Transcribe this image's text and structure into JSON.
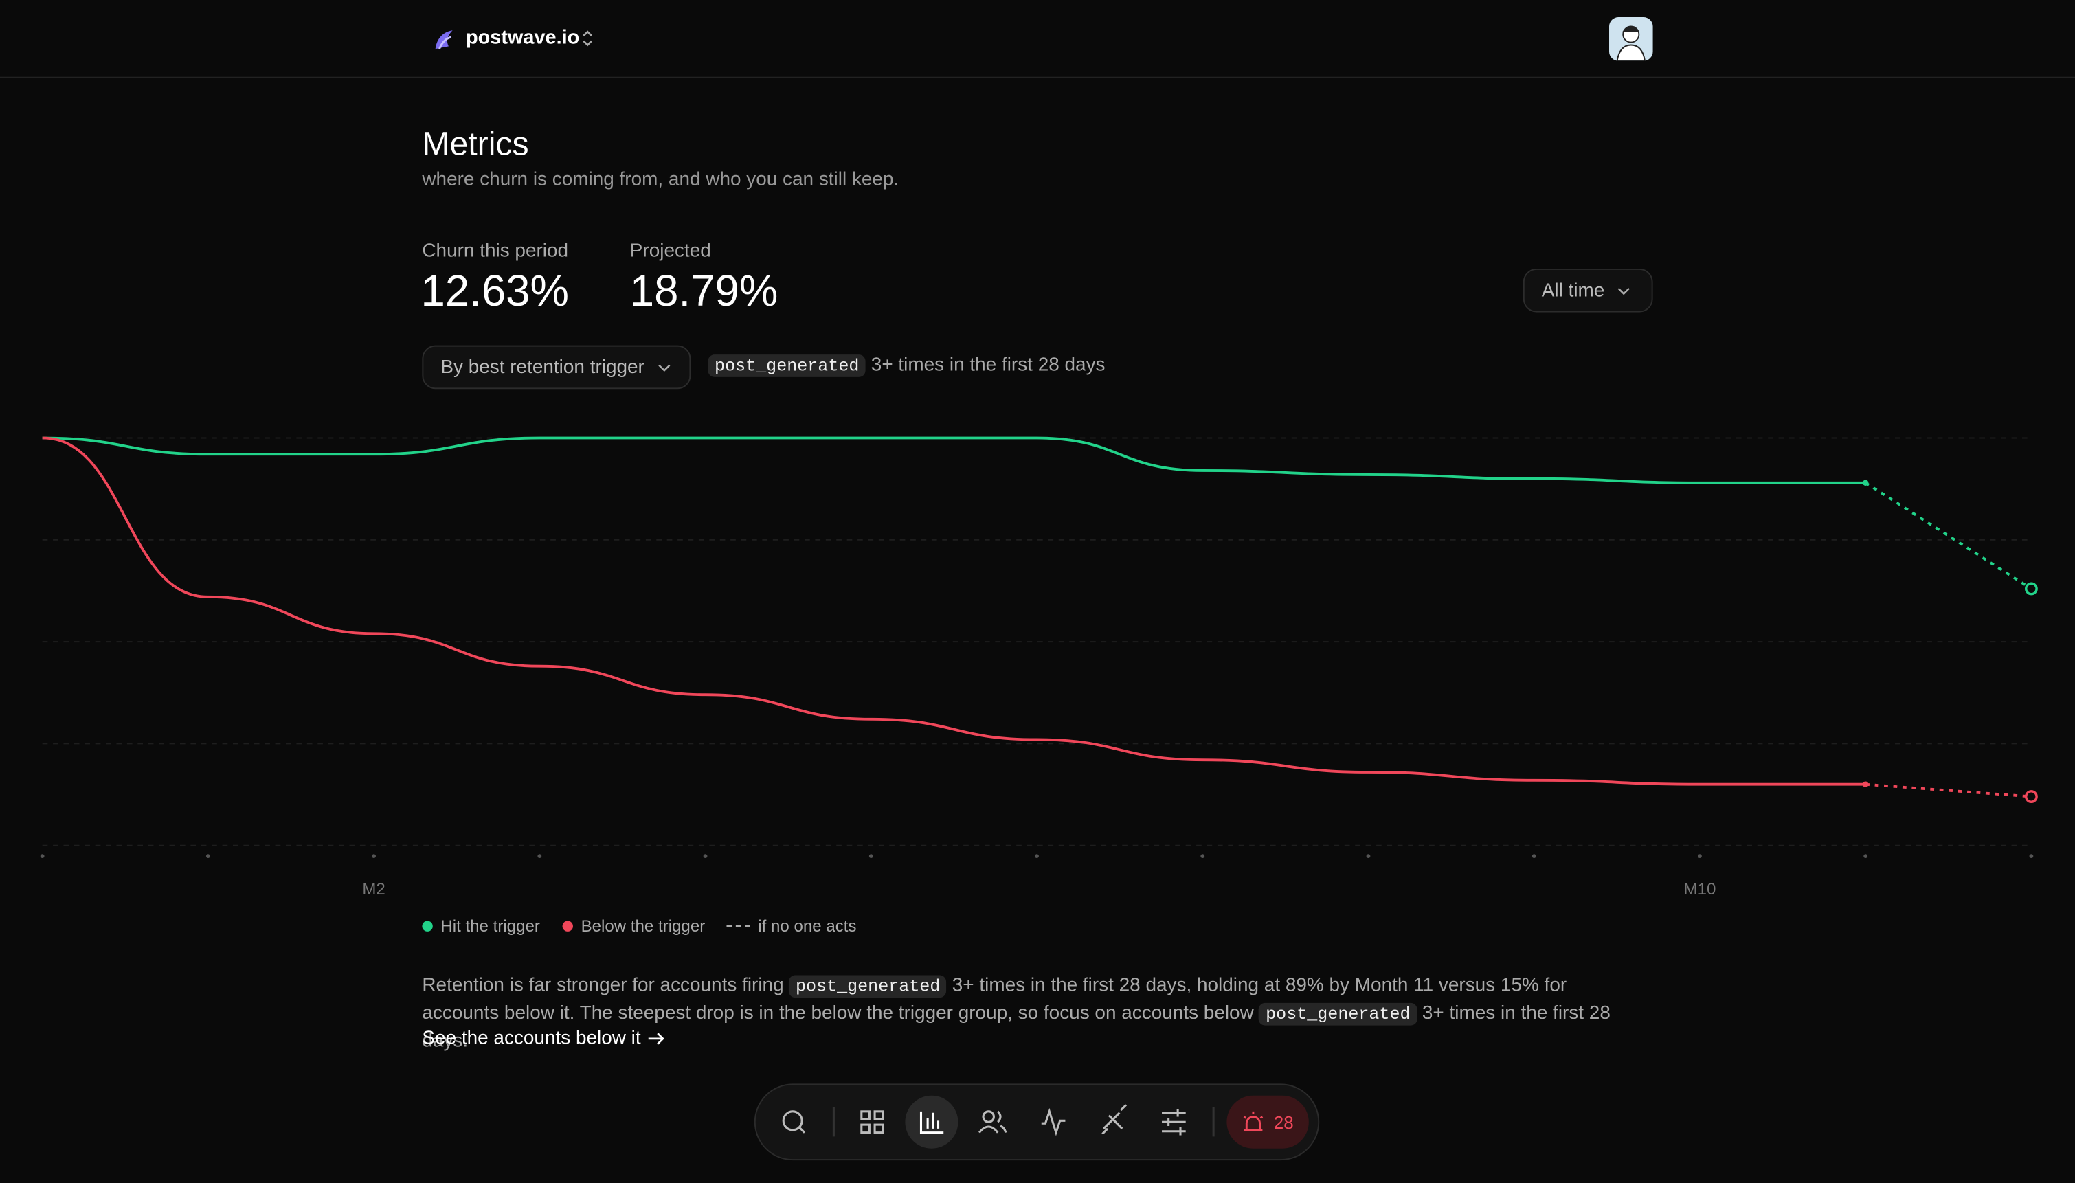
{
  "header": {
    "brand": "postwave.io"
  },
  "page": {
    "title": "Metrics",
    "subtitle": "where churn is coming from, and who you can still keep."
  },
  "stats": [
    {
      "label": "Churn this period",
      "value": "12.63%"
    },
    {
      "label": "Projected",
      "value": "18.79%"
    }
  ],
  "range_button": "All time",
  "trigger_dropdown": "By best retention trigger",
  "trigger": {
    "code": "post_generated",
    "text": "3+ times in the first 28 days"
  },
  "chart_data": {
    "type": "line",
    "categories": [
      null,
      null,
      "M2",
      null,
      null,
      null,
      null,
      null,
      null,
      null,
      "M10",
      null,
      null
    ],
    "ylim": [
      0,
      100
    ],
    "yticks": [
      0,
      25,
      50,
      75,
      100
    ],
    "grid": true,
    "series": [
      {
        "name": "Hit the trigger",
        "color": "#22d38a",
        "values": [
          100,
          96,
          96,
          100,
          100,
          100,
          100,
          92,
          91,
          90,
          89,
          89,
          null
        ],
        "projected": [
          null,
          null,
          null,
          null,
          null,
          null,
          null,
          null,
          null,
          null,
          null,
          null,
          63
        ]
      },
      {
        "name": "Below the trigger",
        "color": "#f0475a",
        "values": [
          100,
          61,
          52,
          44,
          37,
          31,
          26,
          21,
          18,
          16,
          15,
          15,
          null
        ],
        "projected": [
          null,
          null,
          null,
          null,
          null,
          null,
          null,
          null,
          null,
          null,
          null,
          null,
          12
        ]
      }
    ],
    "projection_label": "if no one acts"
  },
  "insight": [
    {
      "text": "Retention is far stronger for accounts firing "
    },
    {
      "code": "post_generated"
    },
    {
      "text": " 3+ times in the first 28 days, holding at 89% by Month 11 versus 15% for accounts below it. The steepest drop is in the below the trigger group, so focus on accounts below "
    },
    {
      "code": "post_generated"
    },
    {
      "text": " 3+ times in the first 28 days."
    }
  ],
  "link": "See the accounts below it",
  "nav": {
    "alerts": "28"
  }
}
